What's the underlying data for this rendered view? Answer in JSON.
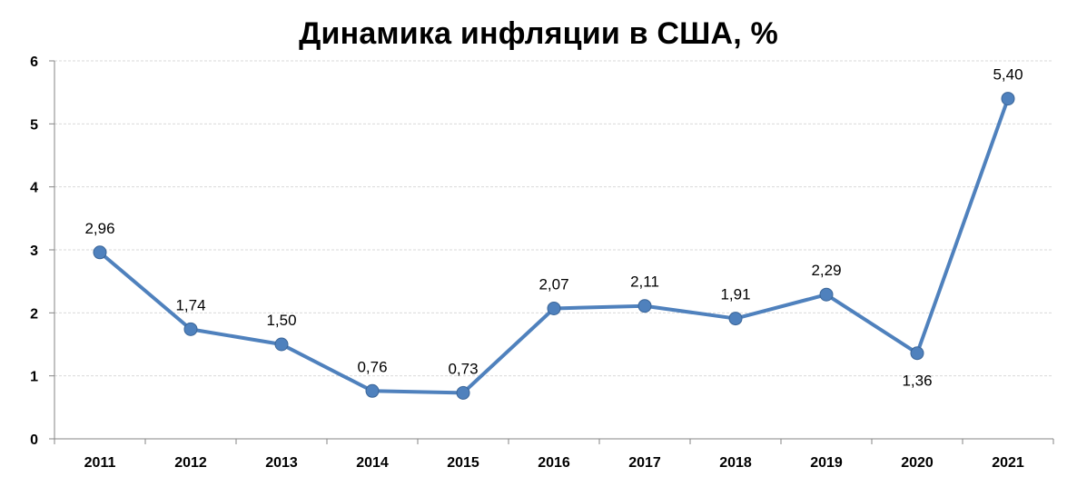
{
  "chart_data": {
    "type": "line",
    "title": "Динамика инфляции в США, %",
    "xlabel": "",
    "ylabel": "",
    "categories": [
      "2011",
      "2012",
      "2013",
      "2014",
      "2015",
      "2016",
      "2017",
      "2018",
      "2019",
      "2020",
      "2021"
    ],
    "series": [
      {
        "values": [
          2.96,
          1.74,
          1.5,
          0.76,
          0.73,
          2.07,
          2.11,
          1.91,
          2.29,
          1.36,
          5.4
        ],
        "labels": [
          "2,96",
          "1,74",
          "1,50",
          "0,76",
          "0,73",
          "2,07",
          "2,11",
          "1,91",
          "2,29",
          "1,36",
          "5,40"
        ],
        "color": "#4f81bd"
      }
    ],
    "ylim": [
      0,
      6
    ],
    "yticks": [
      "0",
      "1",
      "2",
      "3",
      "4",
      "5",
      "6"
    ],
    "grid": true,
    "legend": "none"
  }
}
